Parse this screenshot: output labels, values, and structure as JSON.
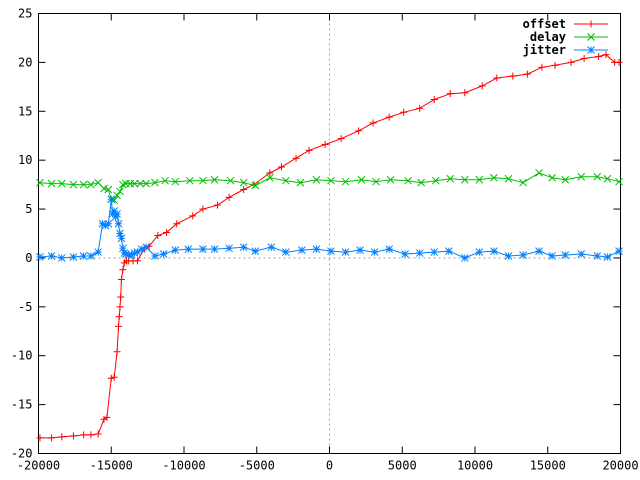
{
  "chart_data": {
    "type": "line",
    "title": "",
    "xlabel": "",
    "ylabel": "",
    "xlim": [
      -20000,
      20000
    ],
    "ylim": [
      -20,
      25
    ],
    "x_ticks": [
      "-20000",
      "-15000",
      "-10000",
      "-5000",
      "0",
      "5000",
      "10000",
      "15000",
      "20000"
    ],
    "y_ticks": [
      "-20",
      "-15",
      "-10",
      "-5",
      "0",
      "5",
      "10",
      "15",
      "20",
      "25"
    ],
    "x_tick_values": [
      -20000,
      -15000,
      -10000,
      -5000,
      0,
      5000,
      10000,
      15000,
      20000
    ],
    "y_tick_values": [
      -20,
      -15,
      -10,
      -5,
      0,
      5,
      10,
      15,
      20,
      25
    ],
    "zero_lines": true,
    "grid": false,
    "legend_position": "top-right",
    "series": [
      {
        "name": "offset",
        "color": "#ff0000",
        "marker": "plus",
        "points": [
          [
            -19900,
            -18.4
          ],
          [
            -19100,
            -18.4
          ],
          [
            -18400,
            -18.3
          ],
          [
            -17600,
            -18.2
          ],
          [
            -16900,
            -18.1
          ],
          [
            -16400,
            -18.1
          ],
          [
            -15900,
            -18.0
          ],
          [
            -15500,
            -16.5
          ],
          [
            -15300,
            -16.3
          ],
          [
            -15000,
            -12.3
          ],
          [
            -14800,
            -12.2
          ],
          [
            -14600,
            -9.6
          ],
          [
            -14500,
            -7.0
          ],
          [
            -14450,
            -6.0
          ],
          [
            -14400,
            -5.0
          ],
          [
            -14350,
            -4.0
          ],
          [
            -14300,
            -2.2
          ],
          [
            -14200,
            -1.2
          ],
          [
            -14100,
            -0.5
          ],
          [
            -13950,
            -0.3
          ],
          [
            -13800,
            -0.3
          ],
          [
            -13500,
            -0.3
          ],
          [
            -13200,
            -0.3
          ],
          [
            -12700,
            1.0
          ],
          [
            -12400,
            1.2
          ],
          [
            -11800,
            2.3
          ],
          [
            -11200,
            2.6
          ],
          [
            -10500,
            3.5
          ],
          [
            -9400,
            4.3
          ],
          [
            -8700,
            5.0
          ],
          [
            -7700,
            5.4
          ],
          [
            -6900,
            6.2
          ],
          [
            -5900,
            7.0
          ],
          [
            -5200,
            7.5
          ],
          [
            -4100,
            8.7
          ],
          [
            -3300,
            9.3
          ],
          [
            -2300,
            10.2
          ],
          [
            -1400,
            11.0
          ],
          [
            -300,
            11.6
          ],
          [
            800,
            12.2
          ],
          [
            2000,
            13.0
          ],
          [
            3000,
            13.8
          ],
          [
            4100,
            14.4
          ],
          [
            5100,
            14.9
          ],
          [
            6200,
            15.3
          ],
          [
            7200,
            16.2
          ],
          [
            8300,
            16.8
          ],
          [
            9300,
            16.9
          ],
          [
            10500,
            17.6
          ],
          [
            11500,
            18.4
          ],
          [
            12600,
            18.6
          ],
          [
            13600,
            18.8
          ],
          [
            14600,
            19.5
          ],
          [
            15500,
            19.7
          ],
          [
            16600,
            20.0
          ],
          [
            17500,
            20.4
          ],
          [
            18500,
            20.6
          ],
          [
            19000,
            20.8
          ],
          [
            19600,
            20.0
          ],
          [
            19900,
            20.0
          ]
        ]
      },
      {
        "name": "delay",
        "color": "#00c000",
        "marker": "cross",
        "points": [
          [
            -19900,
            7.7
          ],
          [
            -19100,
            7.6
          ],
          [
            -18400,
            7.6
          ],
          [
            -17600,
            7.5
          ],
          [
            -16900,
            7.5
          ],
          [
            -16400,
            7.5
          ],
          [
            -15900,
            7.7
          ],
          [
            -15500,
            7.1
          ],
          [
            -15200,
            7.0
          ],
          [
            -15000,
            6.0
          ],
          [
            -14800,
            5.9
          ],
          [
            -14600,
            6.4
          ],
          [
            -14400,
            6.8
          ],
          [
            -14200,
            7.5
          ],
          [
            -14000,
            7.6
          ],
          [
            -13700,
            7.6
          ],
          [
            -13400,
            7.6
          ],
          [
            -13000,
            7.6
          ],
          [
            -12600,
            7.6
          ],
          [
            -12000,
            7.7
          ],
          [
            -11300,
            7.9
          ],
          [
            -10600,
            7.8
          ],
          [
            -9600,
            7.9
          ],
          [
            -8700,
            7.9
          ],
          [
            -7900,
            8.0
          ],
          [
            -6800,
            7.9
          ],
          [
            -5900,
            7.7
          ],
          [
            -5100,
            7.4
          ],
          [
            -4100,
            8.2
          ],
          [
            -3000,
            7.9
          ],
          [
            -2000,
            7.7
          ],
          [
            -900,
            8.0
          ],
          [
            100,
            7.9
          ],
          [
            1100,
            7.8
          ],
          [
            2200,
            8.0
          ],
          [
            3200,
            7.8
          ],
          [
            4200,
            8.0
          ],
          [
            5400,
            7.9
          ],
          [
            6300,
            7.7
          ],
          [
            7300,
            7.9
          ],
          [
            8300,
            8.1
          ],
          [
            9300,
            8.0
          ],
          [
            10300,
            8.0
          ],
          [
            11300,
            8.2
          ],
          [
            12300,
            8.1
          ],
          [
            13300,
            7.7
          ],
          [
            14400,
            8.7
          ],
          [
            15300,
            8.2
          ],
          [
            16200,
            8.0
          ],
          [
            17300,
            8.3
          ],
          [
            18400,
            8.3
          ],
          [
            19100,
            8.1
          ],
          [
            19900,
            7.8
          ]
        ]
      },
      {
        "name": "jitter",
        "color": "#0080ff",
        "marker": "star",
        "points": [
          [
            -19900,
            0.1
          ],
          [
            -19100,
            0.2
          ],
          [
            -18400,
            0.0
          ],
          [
            -17600,
            0.1
          ],
          [
            -16900,
            0.2
          ],
          [
            -16400,
            0.2
          ],
          [
            -15900,
            0.6
          ],
          [
            -15600,
            3.5
          ],
          [
            -15400,
            3.3
          ],
          [
            -15200,
            3.5
          ],
          [
            -15000,
            6.0
          ],
          [
            -14900,
            4.5
          ],
          [
            -14800,
            4.8
          ],
          [
            -14700,
            4.2
          ],
          [
            -14600,
            4.5
          ],
          [
            -14500,
            3.5
          ],
          [
            -14400,
            2.5
          ],
          [
            -14300,
            2.0
          ],
          [
            -14200,
            1.0
          ],
          [
            -14100,
            0.5
          ],
          [
            -14000,
            0.4
          ],
          [
            -13800,
            0.3
          ],
          [
            -13600,
            0.3
          ],
          [
            -13400,
            0.5
          ],
          [
            -13200,
            0.6
          ],
          [
            -12900,
            0.9
          ],
          [
            -12600,
            1.1
          ],
          [
            -12000,
            0.2
          ],
          [
            -11400,
            0.4
          ],
          [
            -10600,
            0.8
          ],
          [
            -9700,
            0.9
          ],
          [
            -8700,
            0.9
          ],
          [
            -7900,
            0.9
          ],
          [
            -6900,
            1.0
          ],
          [
            -5900,
            1.1
          ],
          [
            -5100,
            0.7
          ],
          [
            -4000,
            1.1
          ],
          [
            -3000,
            0.6
          ],
          [
            -1900,
            0.8
          ],
          [
            -900,
            0.9
          ],
          [
            100,
            0.7
          ],
          [
            1100,
            0.6
          ],
          [
            2100,
            0.8
          ],
          [
            3100,
            0.6
          ],
          [
            4100,
            0.9
          ],
          [
            5200,
            0.4
          ],
          [
            6200,
            0.5
          ],
          [
            7200,
            0.6
          ],
          [
            8200,
            0.7
          ],
          [
            9300,
            0.0
          ],
          [
            10300,
            0.6
          ],
          [
            11300,
            0.7
          ],
          [
            12300,
            0.2
          ],
          [
            13300,
            0.3
          ],
          [
            14400,
            0.7
          ],
          [
            15300,
            0.2
          ],
          [
            16200,
            0.3
          ],
          [
            17300,
            0.4
          ],
          [
            18400,
            0.2
          ],
          [
            19100,
            0.1
          ],
          [
            19900,
            0.7
          ]
        ]
      }
    ]
  }
}
